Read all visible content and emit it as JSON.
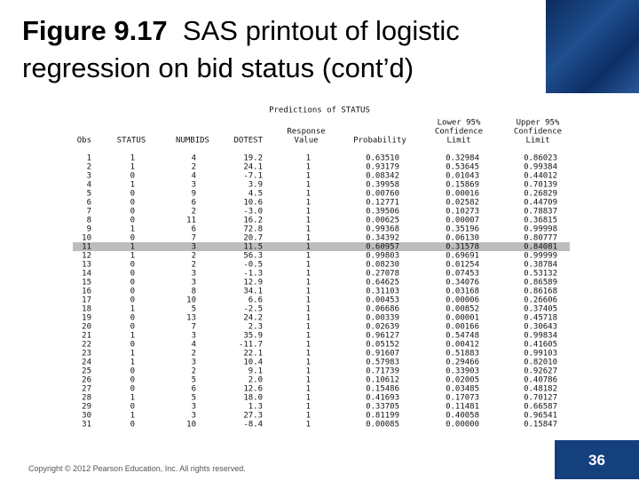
{
  "header": {
    "label": "Figure 9.17",
    "text": "SAS printout of logistic regression on bid status (cont’d)"
  },
  "table": {
    "title": "Predictions of STATUS",
    "columns": [
      [
        "Obs"
      ],
      [
        "STATUS"
      ],
      [
        "NUMBIDS"
      ],
      [
        "DOTEST"
      ],
      [
        "Response",
        "Value"
      ],
      [
        "Probability"
      ],
      [
        "Lower 95%",
        "Confidence",
        "Limit"
      ],
      [
        "Upper 95%",
        "Confidence",
        "Limit"
      ]
    ],
    "highlight_row": 11,
    "rows": [
      [
        "1",
        "1",
        "4",
        "19.2",
        "1",
        "0.63510",
        "0.32984",
        "0.86023"
      ],
      [
        "2",
        "1",
        "2",
        "24.1",
        "1",
        "0.93179",
        "0.53645",
        "0.99384"
      ],
      [
        "3",
        "0",
        "4",
        "-7.1",
        "1",
        "0.08342",
        "0.01043",
        "0.44012"
      ],
      [
        "4",
        "1",
        "3",
        "3.9",
        "1",
        "0.39958",
        "0.15869",
        "0.70139"
      ],
      [
        "5",
        "0",
        "9",
        "4.5",
        "1",
        "0.00760",
        "0.00016",
        "0.26829"
      ],
      [
        "6",
        "0",
        "6",
        "10.6",
        "1",
        "0.12771",
        "0.02582",
        "0.44709"
      ],
      [
        "7",
        "0",
        "2",
        "-3.0",
        "1",
        "0.39506",
        "0.10273",
        "0.78837"
      ],
      [
        "8",
        "0",
        "11",
        "16.2",
        "1",
        "0.00625",
        "0.00007",
        "0.36815"
      ],
      [
        "9",
        "1",
        "6",
        "72.8",
        "1",
        "0.99368",
        "0.35196",
        "0.99998"
      ],
      [
        "10",
        "0",
        "7",
        "20.7",
        "1",
        "0.34392",
        "0.06130",
        "0.80777"
      ],
      [
        "11",
        "1",
        "3",
        "11.5",
        "1",
        "0.60957",
        "0.31578",
        "0.84081"
      ],
      [
        "12",
        "1",
        "2",
        "56.3",
        "1",
        "0.99803",
        "0.69691",
        "0.99999"
      ],
      [
        "13",
        "0",
        "2",
        "-0.5",
        "1",
        "0.08230",
        "0.01254",
        "0.38784"
      ],
      [
        "14",
        "0",
        "3",
        "-1.3",
        "1",
        "0.27078",
        "0.07453",
        "0.53132"
      ],
      [
        "15",
        "0",
        "3",
        "12.9",
        "1",
        "0.64625",
        "0.34076",
        "0.86589"
      ],
      [
        "16",
        "0",
        "8",
        "34.1",
        "1",
        "0.31103",
        "0.03168",
        "0.86168"
      ],
      [
        "17",
        "0",
        "10",
        "6.6",
        "1",
        "0.00453",
        "0.00006",
        "0.26606"
      ],
      [
        "18",
        "1",
        "5",
        "-2.5",
        "1",
        "0.06686",
        "0.00852",
        "0.37405"
      ],
      [
        "19",
        "0",
        "13",
        "24.2",
        "1",
        "0.00339",
        "0.00001",
        "0.45718"
      ],
      [
        "20",
        "0",
        "7",
        "2.3",
        "1",
        "0.02639",
        "0.00166",
        "0.30643"
      ],
      [
        "21",
        "1",
        "3",
        "35.9",
        "1",
        "0.96127",
        "0.54748",
        "0.99834"
      ],
      [
        "22",
        "0",
        "4",
        "-11.7",
        "1",
        "0.05152",
        "0.00412",
        "0.41605"
      ],
      [
        "23",
        "1",
        "2",
        "22.1",
        "1",
        "0.91607",
        "0.51883",
        "0.99103"
      ],
      [
        "24",
        "1",
        "3",
        "10.4",
        "1",
        "0.57983",
        "0.29466",
        "0.82010"
      ],
      [
        "25",
        "0",
        "2",
        "9.1",
        "1",
        "0.71739",
        "0.33903",
        "0.92627"
      ],
      [
        "26",
        "0",
        "5",
        "2.0",
        "1",
        "0.10612",
        "0.02005",
        "0.40786"
      ],
      [
        "27",
        "0",
        "6",
        "12.6",
        "1",
        "0.15486",
        "0.03485",
        "0.48182"
      ],
      [
        "28",
        "1",
        "5",
        "18.0",
        "1",
        "0.41693",
        "0.17073",
        "0.70127"
      ],
      [
        "29",
        "0",
        "3",
        "1.3",
        "1",
        "0.33705",
        "0.11481",
        "0.66587"
      ],
      [
        "30",
        "1",
        "3",
        "27.3",
        "1",
        "0.81199",
        "0.40058",
        "0.96541"
      ],
      [
        "31",
        "0",
        "10",
        "-8.4",
        "1",
        "0.00085",
        "0.00000",
        "0.15847"
      ]
    ]
  },
  "footer": {
    "copyright": "Copyright © 2012 Pearson Education, Inc. All rights reserved.",
    "page": "36"
  }
}
